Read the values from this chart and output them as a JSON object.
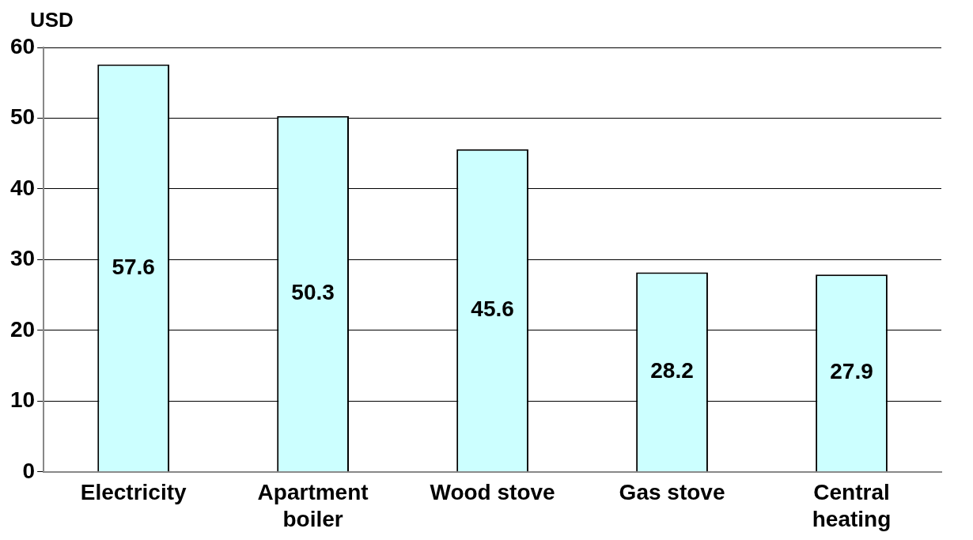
{
  "chart_data": {
    "type": "bar",
    "ylabel": "USD",
    "categories": [
      "Electricity",
      "Apartment boiler",
      "Wood stove",
      "Gas stove",
      "Central heating"
    ],
    "values": [
      57.6,
      50.3,
      45.6,
      28.2,
      27.9
    ],
    "color": "#ccffff",
    "ylim": [
      0,
      60
    ],
    "yticks": [
      0,
      10,
      20,
      30,
      40,
      50,
      60
    ],
    "grid": "y",
    "data_labels": true,
    "legend": false
  }
}
